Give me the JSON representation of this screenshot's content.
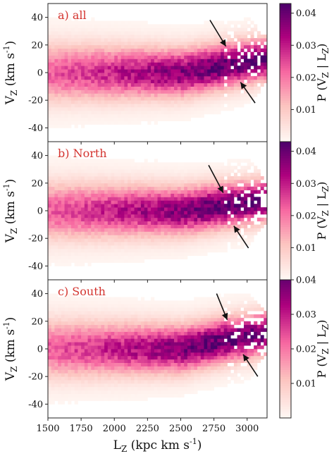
{
  "chart_data": {
    "type": "heatmap",
    "xlabel": "L_Z (kpc km s^-1)",
    "xlim": [
      1500,
      3150
    ],
    "xticks": [
      1500,
      1750,
      2000,
      2250,
      2500,
      2750,
      3000
    ],
    "ylabel": "V_Z (km s^-1)",
    "ylim": [
      -50,
      50
    ],
    "yticks": [
      -40,
      -20,
      0,
      20,
      40
    ],
    "colorbar": {
      "label": "P (V_Z | L_Z)",
      "ticks": [
        0.01,
        0.02,
        0.03,
        0.04
      ],
      "range": [
        0.0,
        0.043
      ],
      "colors": [
        "#fff7f3",
        "#fcc5c0",
        "#f768a1",
        "#ae017e",
        "#49006a"
      ]
    },
    "panels": [
      {
        "label": "a) all",
        "peak_density": 0.043,
        "ridge": [
          {
            "lz": 1500,
            "vz": 0
          },
          {
            "lz": 2500,
            "vz": 0
          },
          {
            "lz": 2750,
            "vz": 4
          },
          {
            "lz": 3000,
            "vz": 8
          },
          {
            "lz": 3150,
            "vz": 10
          }
        ],
        "arrows": [
          {
            "from": {
              "lz": 2720,
              "vz": 38
            },
            "to": {
              "lz": 2840,
              "vz": 19
            }
          },
          {
            "from": {
              "lz": 3060,
              "vz": -22
            },
            "to": {
              "lz": 2950,
              "vz": -7
            }
          }
        ]
      },
      {
        "label": "b) North",
        "peak_density": 0.043,
        "ridge": [
          {
            "lz": 1500,
            "vz": 0
          },
          {
            "lz": 2500,
            "vz": 0
          },
          {
            "lz": 2750,
            "vz": 3
          },
          {
            "lz": 3000,
            "vz": 6
          },
          {
            "lz": 3150,
            "vz": 8
          }
        ],
        "arrows": [
          {
            "from": {
              "lz": 2710,
              "vz": 33
            },
            "to": {
              "lz": 2820,
              "vz": 13
            }
          },
          {
            "from": {
              "lz": 3010,
              "vz": -27
            },
            "to": {
              "lz": 2900,
              "vz": -11
            }
          }
        ]
      },
      {
        "label": "c) South",
        "peak_density": 0.04,
        "ridge": [
          {
            "lz": 1500,
            "vz": 0
          },
          {
            "lz": 2500,
            "vz": 0
          },
          {
            "lz": 2750,
            "vz": 5
          },
          {
            "lz": 3000,
            "vz": 9
          },
          {
            "lz": 3150,
            "vz": 12
          }
        ],
        "arrows": [
          {
            "from": {
              "lz": 2770,
              "vz": 40
            },
            "to": {
              "lz": 2850,
              "vz": 21
            }
          },
          {
            "from": {
              "lz": 3080,
              "vz": -20
            },
            "to": {
              "lz": 2970,
              "vz": -4
            }
          }
        ]
      }
    ]
  }
}
